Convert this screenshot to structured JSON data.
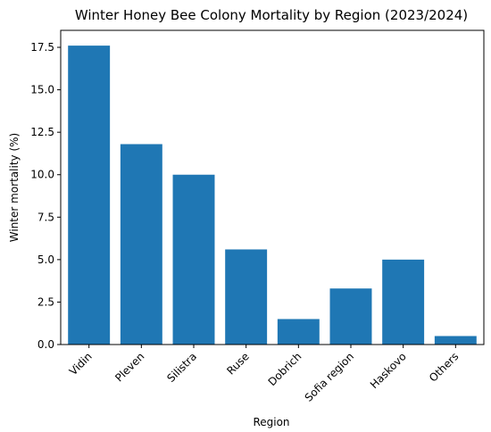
{
  "chart_data": {
    "type": "bar",
    "title": "Winter Honey Bee Colony Mortality by Region (2023/2024)",
    "xlabel": "Region",
    "ylabel": "Winter mortality (%)",
    "categories": [
      "Vidin",
      "Pleven",
      "Silistra",
      "Ruse",
      "Dobrich",
      "Sofia region",
      "Haskovo",
      "Others"
    ],
    "values": [
      17.6,
      11.8,
      10.0,
      5.6,
      1.5,
      3.3,
      5.0,
      0.5
    ],
    "ylim": [
      0,
      18.5
    ],
    "yticks": [
      "0.0",
      "2.5",
      "5.0",
      "7.5",
      "10.0",
      "12.5",
      "15.0",
      "17.5"
    ],
    "grid": false,
    "legend": "none",
    "bar_color": "#1f77b4"
  }
}
